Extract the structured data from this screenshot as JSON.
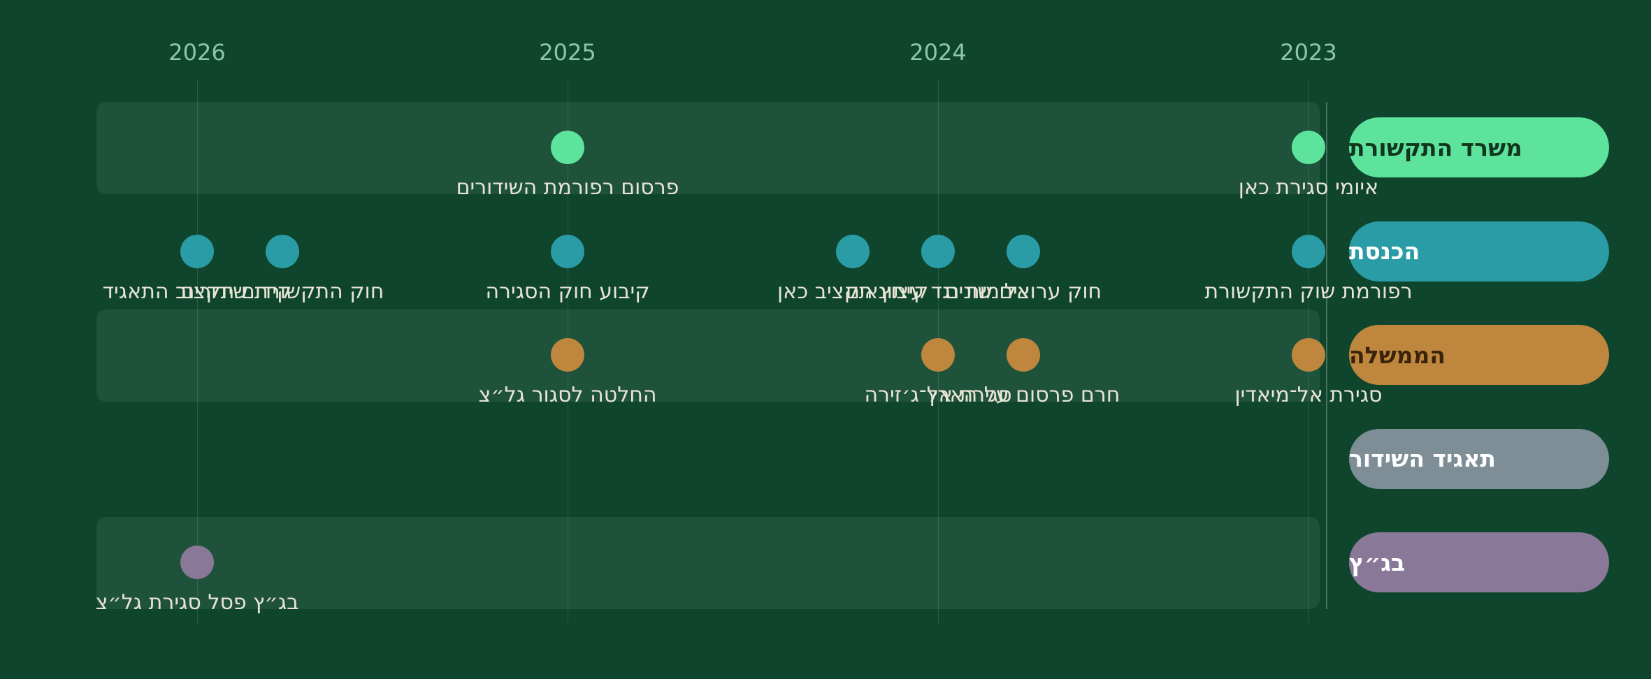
{
  "colors": {
    "background": "#0f452c",
    "communications_ministry": "#5de39c",
    "knesset": "#2a9ca6",
    "government": "#be873d",
    "broadcasters_union": "#7d8e96",
    "high_court": "#8a7899",
    "year_text": "#8cc8a6",
    "label_text": "#e8e4d8"
  },
  "years": [
    "2026",
    "2025",
    "2024",
    "2023"
  ],
  "lanes": [
    {
      "id": "communications_ministry",
      "name": "משרד התקשורת",
      "text_color": "#12351f"
    },
    {
      "id": "knesset",
      "name": "הכנסת",
      "text_color": "#ffffff"
    },
    {
      "id": "government",
      "name": "הממשלה",
      "text_color": "#3a230a"
    },
    {
      "id": "broadcasters_union",
      "name": "תאגיד השידור",
      "text_color": "#ffffff"
    },
    {
      "id": "high_court",
      "name": "בג״ץ",
      "text_color": "#ffffff"
    }
  ],
  "events": [
    {
      "lane": 0,
      "year": 2023,
      "label": "איומי סגירת כאן"
    },
    {
      "lane": 0,
      "year": 2025,
      "label": "פרסום רפורמת השידורים"
    },
    {
      "lane": 1,
      "year": 2023,
      "label": "רפורמת שוק התקשורת"
    },
    {
      "lane": 1,
      "year": 2023.77,
      "label": "חוק ערוצים שונים"
    },
    {
      "lane": 1,
      "year": 2024,
      "label": "אלימות נגד עיתונאים"
    },
    {
      "lane": 1,
      "year": 2024.23,
      "label": "קיצוץ תקציב כאן"
    },
    {
      "lane": 1,
      "year": 2025,
      "label": "קיבוע חוק הסגירה"
    },
    {
      "lane": 1,
      "year": 2025.77,
      "label": "חוק התקשורת שידורים"
    },
    {
      "lane": 1,
      "year": 2026,
      "label": "קידום תקצוב התאגיד"
    },
    {
      "lane": 2,
      "year": 2023,
      "label": "סגירת אל־מיאדין"
    },
    {
      "lane": 2,
      "year": 2023.77,
      "label": "חרם פרסום על הארץ"
    },
    {
      "lane": 2,
      "year": 2024,
      "label": "סגירת אל־ג׳זירה"
    },
    {
      "lane": 2,
      "year": 2025,
      "label": "החלטה לסגור גל״צ"
    },
    {
      "lane": 4,
      "year": 2026,
      "label": "בג״ץ פסל סגירת גל״צ"
    }
  ]
}
